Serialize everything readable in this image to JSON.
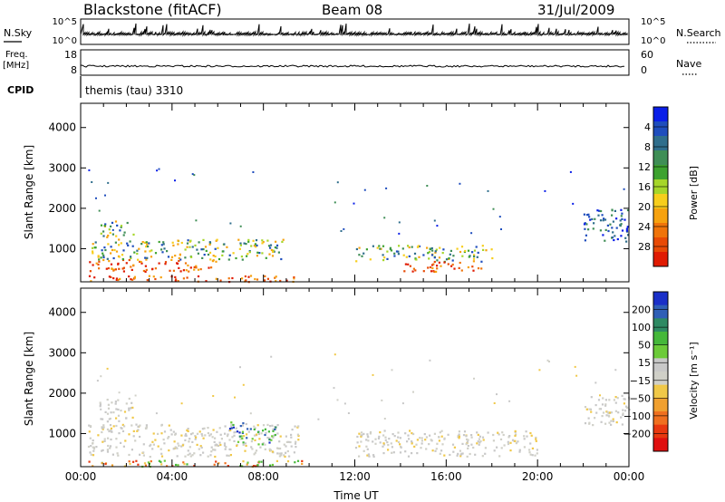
{
  "header": {
    "station": "Blackstone (fitACF)",
    "beam": "Beam 08",
    "date": "31/Jul/2009"
  },
  "noise_panel": {
    "left_label": "N.Sky",
    "right_label": "N.Search",
    "left_ticks": [
      "10^5",
      "10^0"
    ],
    "right_ticks": [
      "10^5",
      "10^0"
    ]
  },
  "freq_panel": {
    "left_label_line1": "Freq.",
    "left_label_line2": "[MHz]",
    "right_label": "Nave",
    "left_ticks": [
      "18",
      "8"
    ],
    "right_ticks": [
      "60",
      "0"
    ]
  },
  "cpid": {
    "label": "CPID",
    "mode": "themis (tau) 3310"
  },
  "chart_data": [
    {
      "type": "heatmap",
      "title": "",
      "xlabel": "",
      "ylabel": "Slant Range [km]",
      "x_tick_labels": [
        "00:00",
        "04:00",
        "08:00",
        "12:00",
        "16:00",
        "20:00",
        "00:00"
      ],
      "y_ticks": [
        1000,
        2000,
        3000,
        4000
      ],
      "ylim": [
        180,
        4600
      ],
      "colorbar": {
        "label": "Power [dB]",
        "ticks": [
          "4",
          "8",
          "12",
          "16",
          "20",
          "24",
          "28"
        ],
        "colors": [
          "#0a1ee8",
          "#1e4dbd",
          "#2f6e8c",
          "#3f8e56",
          "#3da22f",
          "#a6d62a",
          "#f7ce1c",
          "#f6a20f",
          "#f0740a",
          "#e84a05",
          "#e01b02"
        ]
      },
      "scatter_regions": [
        {
          "t_start": 0.3,
          "t_end": 10.0,
          "range_low": 200,
          "range_high": 350,
          "level": "high"
        },
        {
          "t_start": 0.3,
          "t_end": 6.0,
          "range_low": 450,
          "range_high": 750,
          "level": "high"
        },
        {
          "t_start": 0.3,
          "t_end": 9.0,
          "range_low": 750,
          "range_high": 1250,
          "level": "mid"
        },
        {
          "t_start": 0.8,
          "t_end": 2.3,
          "range_low": 1300,
          "range_high": 1700,
          "level": "mid"
        },
        {
          "t_start": 12.0,
          "t_end": 18.0,
          "range_low": 700,
          "range_high": 1100,
          "level": "mid"
        },
        {
          "t_start": 14.0,
          "t_end": 17.5,
          "range_low": 450,
          "range_high": 700,
          "level": "high"
        },
        {
          "t_start": 22.0,
          "t_end": 24.0,
          "range_low": 1200,
          "range_high": 2000,
          "level": "low"
        }
      ]
    },
    {
      "type": "heatmap",
      "title": "",
      "xlabel": "Time UT",
      "ylabel": "Slant Range [km]",
      "x_tick_labels": [
        "00:00",
        "04:00",
        "08:00",
        "12:00",
        "16:00",
        "20:00",
        "00:00"
      ],
      "y_ticks": [
        1000,
        2000,
        3000,
        4000
      ],
      "ylim": [
        180,
        4600
      ],
      "colorbar": {
        "label": "Velocity [m s⁻¹]",
        "ticks": [
          "200",
          "100",
          "50",
          "15",
          "−15",
          "−50",
          "−100",
          "−200"
        ],
        "colors": [
          "#1a2fc8",
          "#2f5fb6",
          "#2e8a63",
          "#45b83a",
          "#6ccb39",
          "#c8c8c8",
          "#d0d0c8",
          "#f0c848",
          "#f0a030",
          "#f07020",
          "#e83810",
          "#e01010"
        ]
      },
      "scatter_regions": [
        {
          "t_start": 0.3,
          "t_end": 10.0,
          "range_low": 200,
          "range_high": 350,
          "level": "mixed"
        },
        {
          "t_start": 0.3,
          "t_end": 9.5,
          "range_low": 450,
          "range_high": 1250,
          "level": "grey"
        },
        {
          "t_start": 6.5,
          "t_end": 8.5,
          "range_low": 750,
          "range_high": 1300,
          "level": "flow"
        },
        {
          "t_start": 0.8,
          "t_end": 2.3,
          "range_low": 1300,
          "range_high": 1900,
          "level": "grey"
        },
        {
          "t_start": 12.0,
          "t_end": 20.0,
          "range_low": 450,
          "range_high": 1100,
          "level": "grey"
        },
        {
          "t_start": 22.0,
          "t_end": 24.0,
          "range_low": 1200,
          "range_high": 2000,
          "level": "grey"
        }
      ]
    }
  ]
}
